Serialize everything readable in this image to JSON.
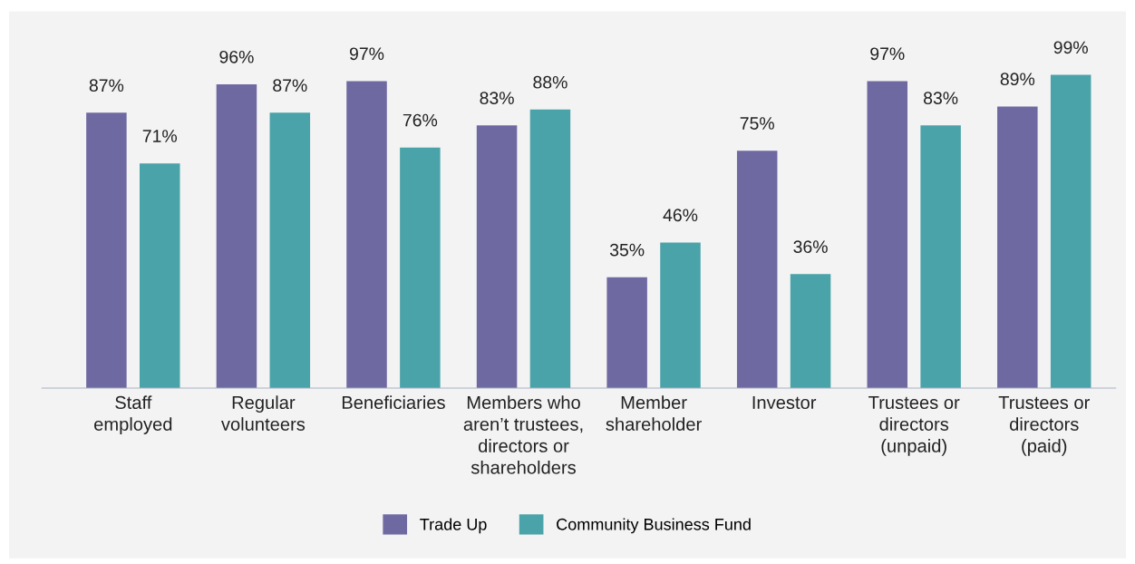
{
  "chart_data": {
    "type": "bar",
    "categories": [
      "Staff\nemployed",
      "Regular\nvolunteers",
      "Beneficiaries",
      "Members who\naren’t trustees,\ndirectors or\nshareholders",
      "Member\nshareholder",
      "Investor",
      "Trustees or\ndirectors\n(unpaid)",
      "Trustees or\ndirectors\n(paid)"
    ],
    "series": [
      {
        "name": "Trade Up",
        "color": "#6f69a2",
        "values": [
          87,
          96,
          97,
          83,
          35,
          75,
          97,
          89
        ],
        "value_labels": [
          "87%",
          "96%",
          "97%",
          "83%",
          "35%",
          "75%",
          "97%",
          "89%"
        ]
      },
      {
        "name": "Community Business Fund",
        "color": "#4aa3a9",
        "values": [
          71,
          87,
          76,
          88,
          46,
          36,
          83,
          99
        ],
        "value_labels": [
          "71%",
          "87%",
          "76%",
          "88%",
          "46%",
          "36%",
          "83%",
          "99%"
        ]
      }
    ],
    "ylim": [
      0,
      100
    ],
    "tick_labels": "x",
    "grid": false,
    "legend": "bottom"
  }
}
